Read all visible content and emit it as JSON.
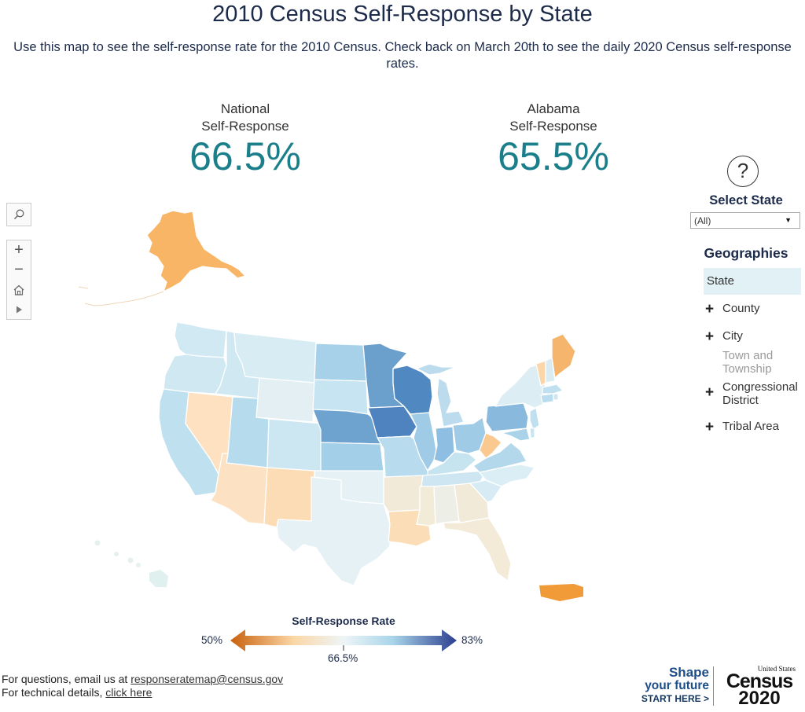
{
  "header": {
    "title": "2010 Census Self-Response by State",
    "subtitle": "Use this map to see the self-response rate for the 2010 Census. Check back on March 20th to see the daily 2020 Census self-response rates."
  },
  "stats": {
    "national": {
      "label_line1": "National",
      "label_line2": "Self-Response",
      "value": "66.5%"
    },
    "selected": {
      "label_line1": "Alabama",
      "label_line2": "Self-Response",
      "value": "65.5%"
    }
  },
  "sidebar": {
    "help_symbol": "?",
    "select_state_label": "Select State",
    "select_state_value": "(All)",
    "geographies_title": "Geographies",
    "geographies": [
      {
        "label": "State",
        "selected": true,
        "expandable": false,
        "enabled": true
      },
      {
        "label": "County",
        "selected": false,
        "expandable": true,
        "enabled": true
      },
      {
        "label": "City",
        "selected": false,
        "expandable": true,
        "enabled": true
      },
      {
        "label_line1": "Town and",
        "label_line2": "Township",
        "selected": false,
        "expandable": false,
        "enabled": false
      },
      {
        "label_line1": "Congressional",
        "label_line2": "District",
        "selected": false,
        "expandable": true,
        "enabled": true
      },
      {
        "label": "Tribal Area",
        "selected": false,
        "expandable": true,
        "enabled": true
      }
    ],
    "expand_symbol": "+"
  },
  "map_toolbar": {
    "icons": [
      "search-icon",
      "zoom-in-icon",
      "zoom-out-icon",
      "home-icon",
      "play-icon"
    ]
  },
  "legend": {
    "title": "Self-Response Rate",
    "min_label": "50%",
    "mid_label": "66.5%",
    "max_label": "83%",
    "min": 50,
    "mid": 66.5,
    "max": 83,
    "colors": {
      "low": "#c9600c",
      "low_mid": "#fbd7a6",
      "mid": "#eef5f7",
      "high_mid": "#a8d4ea",
      "high": "#2c3e8f"
    }
  },
  "colors": {
    "title": "#1d2b4a",
    "stat_value": "#1a7f8a",
    "alaska": "#f7b565",
    "puerto_rico": "#f09a38",
    "west_orange": "#fce2c2",
    "south_beige": "#f2ead9",
    "light_blue": "#cfe8f2",
    "mid_blue": "#a6d2ea",
    "strong_blue": "#5b92c4",
    "texas": "#e6f1f5"
  },
  "footer": {
    "line1_prefix": "For questions, email us at ",
    "email": "responseratemap@census.gov",
    "line2_prefix": "For technical details, ",
    "link": "click here"
  },
  "brand": {
    "shape_line1": "Shape",
    "shape_line2": "your future",
    "start_here": "START HERE >",
    "us_label": "United States",
    "census": "Census",
    "year": "2020"
  }
}
